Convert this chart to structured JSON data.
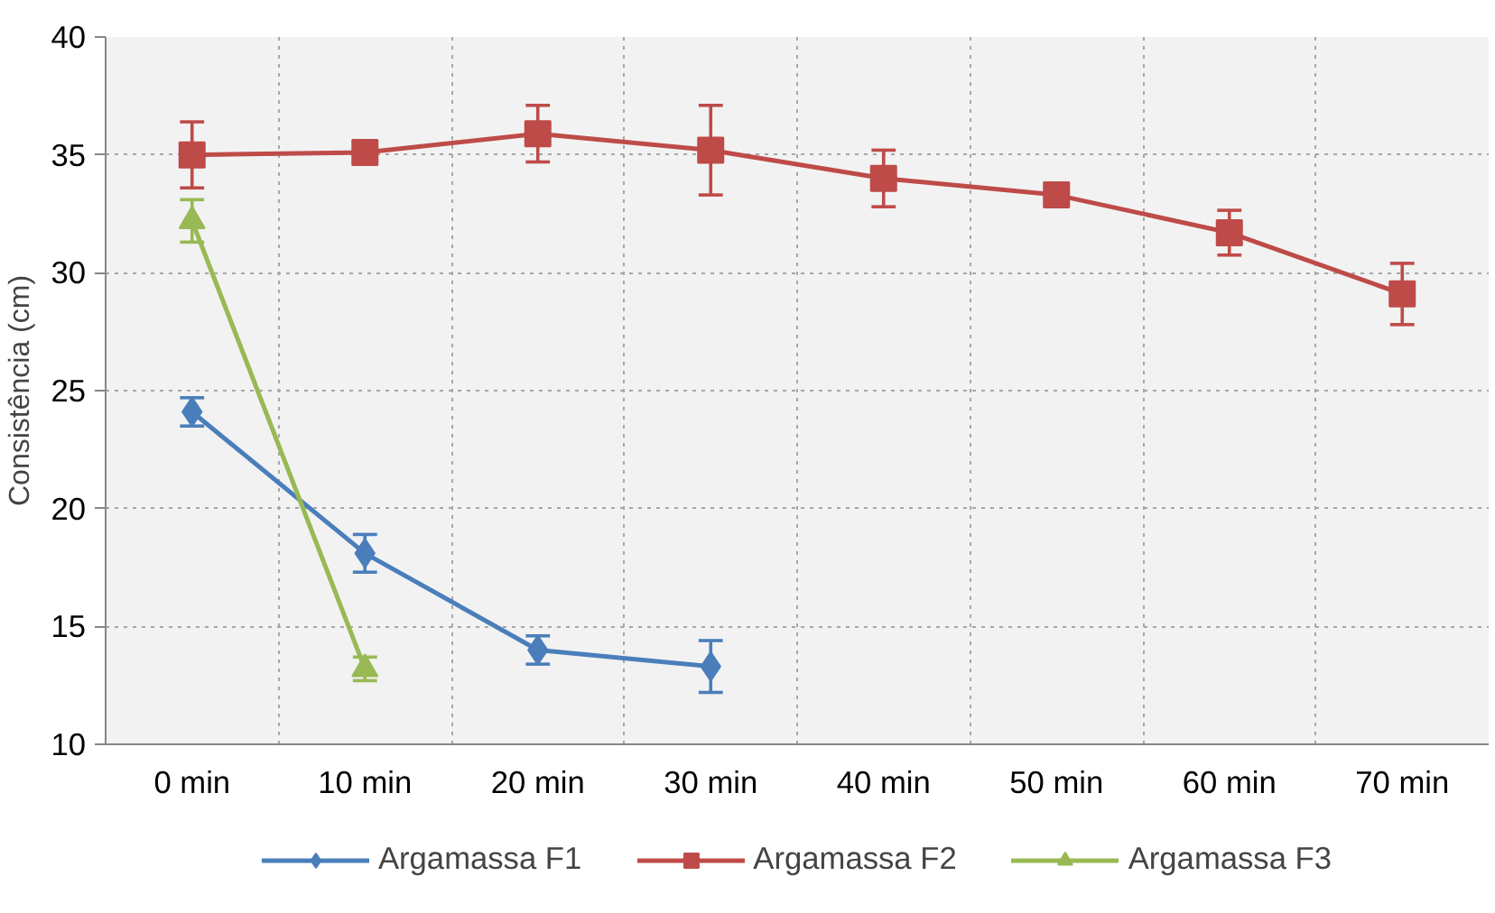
{
  "chart_data": {
    "type": "line",
    "ylabel": "Consistência (cm)",
    "categories": [
      "0 min",
      "10 min",
      "20 min",
      "30 min",
      "40 min",
      "50 min",
      "60 min",
      "70 min"
    ],
    "series": [
      {
        "name": "Argamassa F1",
        "color": "#4a7ebb",
        "marker": "diamond",
        "values": [
          24.1,
          18.1,
          14.0,
          13.3,
          null,
          null,
          null,
          null
        ],
        "errors": [
          0.6,
          0.8,
          0.6,
          1.1,
          null,
          null,
          null,
          null
        ]
      },
      {
        "name": "Argamassa F2",
        "color": "#be4b48",
        "marker": "square",
        "values": [
          35.0,
          35.1,
          35.9,
          35.2,
          34.0,
          33.3,
          31.7,
          29.1
        ],
        "errors": [
          1.4,
          0.3,
          1.2,
          1.9,
          1.2,
          0.2,
          0.95,
          1.3
        ]
      },
      {
        "name": "Argamassa F3",
        "color": "#98b954",
        "marker": "triangle",
        "values": [
          32.2,
          13.2,
          null,
          null,
          null,
          null,
          null,
          null
        ],
        "errors": [
          0.9,
          0.5,
          null,
          null,
          null,
          null,
          null,
          null
        ]
      }
    ],
    "ylim": [
      10,
      40
    ],
    "yticks": [
      10,
      15,
      20,
      25,
      30,
      35,
      40
    ],
    "grid": true,
    "legend": "bottom"
  }
}
